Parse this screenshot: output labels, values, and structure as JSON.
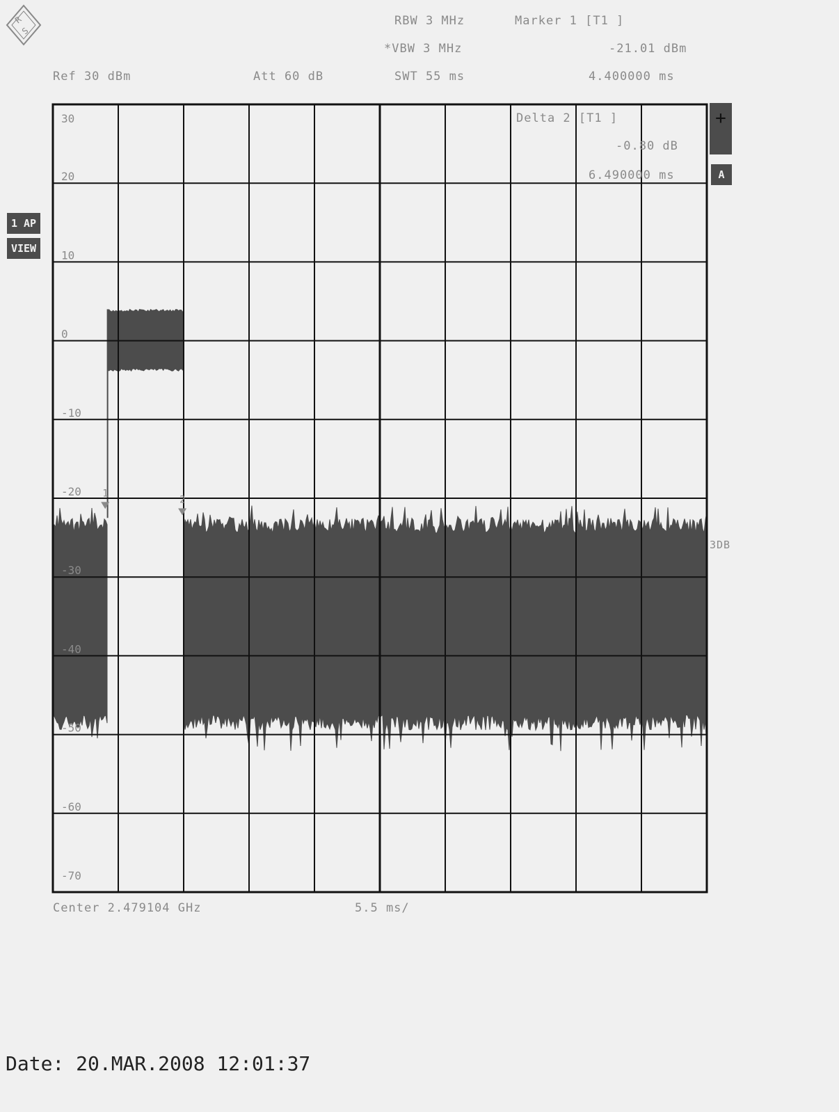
{
  "header": {
    "rbw": "RBW 3 MHz",
    "vbw": "*VBW 3 MHz",
    "swt": "SWT 55 ms",
    "ref": "Ref  30 dBm",
    "att": "Att  60 dB",
    "marker1_label": "Marker 1 [T1 ]",
    "marker1_level": "-21.01 dBm",
    "marker1_time": "4.400000 ms"
  },
  "delta": {
    "label": "Delta 2 [T1 ]",
    "level": "-0.80 dB",
    "time": "6.490000 ms"
  },
  "side": {
    "trace_label_1": "1 AP",
    "trace_label_2": "VIEW",
    "plus_symbol": "+",
    "trace_box": "A",
    "db_label": "3DB"
  },
  "footer": {
    "center": "Center 2.479104 GHz",
    "scale": "5.5 ms/",
    "date": "Date: 20.MAR.2008  12:01:37"
  },
  "chart_data": {
    "type": "line",
    "ylabel_unit": "dBm",
    "ylim": [
      -70,
      30
    ],
    "y_ticks": [
      "30",
      "20",
      "10",
      "0",
      "-10",
      "-20",
      "-30",
      "-40",
      "-50",
      "-60",
      "-70"
    ],
    "xlim_ms": [
      0,
      55
    ],
    "x_divisions": 10,
    "grid": true,
    "series": [
      {
        "segments": [
          {
            "t_start_ms": 0.0,
            "t_end_ms": 4.6,
            "level_top_dBm": -22.5,
            "level_bottom_dBm": -47.5
          },
          {
            "t_start_ms": 4.6,
            "t_end_ms": 11.0,
            "level_top_dBm": 4.0,
            "level_bottom_dBm": -3.5
          },
          {
            "t_start_ms": 11.0,
            "t_end_ms": 55.0,
            "level_top_dBm": -22.5,
            "level_bottom_dBm": -47.5
          }
        ]
      }
    ],
    "markers": [
      {
        "label": "1",
        "t_ms": 4.4,
        "level_dBm": -21.01
      },
      {
        "label": "2",
        "t_ms": 10.89,
        "level_dBm": -21.81
      }
    ],
    "colors": {
      "trace": "#4c4c4c",
      "grid": "#111111",
      "background": "#f0f0f0"
    }
  }
}
